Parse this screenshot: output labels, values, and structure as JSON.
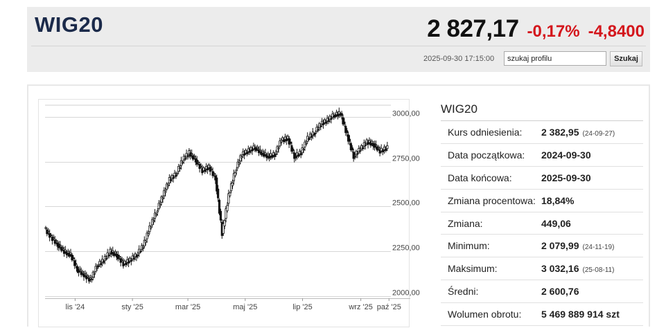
{
  "header": {
    "ticker": "WIG20",
    "price": "2 827,17",
    "change_pct": "-0,17%",
    "change_abs": "-4,8400",
    "timestamp": "2025-09-30 17:15:00",
    "search_value": "szukaj profilu",
    "search_button": "Szukaj",
    "change_color": "#d4161c"
  },
  "stats": {
    "title": "WIG20",
    "rows": [
      {
        "label": "Kurs odniesienia:",
        "value": "2 382,95",
        "date": "(24-09-27)"
      },
      {
        "label": "Data początkowa:",
        "value": "2024-09-30",
        "date": ""
      },
      {
        "label": "Data końcowa:",
        "value": "2025-09-30",
        "date": ""
      },
      {
        "label": "Zmiana procentowa:",
        "value": "18,84%",
        "date": ""
      },
      {
        "label": "Zmiana:",
        "value": "449,06",
        "date": ""
      },
      {
        "label": "Minimum:",
        "value": "2 079,99",
        "date": "(24-11-19)"
      },
      {
        "label": "Maksimum:",
        "value": "3 032,16",
        "date": "(25-08-11)"
      },
      {
        "label": "Średni:",
        "value": "2 600,76",
        "date": ""
      },
      {
        "label": "Wolumen obrotu:",
        "value": "5 469 889 914 szt",
        "date": ""
      }
    ]
  },
  "chart_data": {
    "type": "line",
    "style": "candlestick",
    "x": [
      "2024-09-30",
      "2024-10-07",
      "2024-10-14",
      "2024-10-21",
      "2024-10-28",
      "2024-11-04",
      "2024-11-11",
      "2024-11-18",
      "2024-11-25",
      "2024-12-02",
      "2024-12-09",
      "2024-12-16",
      "2024-12-23",
      "2024-12-30",
      "2025-01-06",
      "2025-01-13",
      "2025-01-20",
      "2025-01-27",
      "2025-02-03",
      "2025-02-10",
      "2025-02-17",
      "2025-02-24",
      "2025-03-03",
      "2025-03-10",
      "2025-03-17",
      "2025-03-24",
      "2025-03-31",
      "2025-04-07",
      "2025-04-14",
      "2025-04-21",
      "2025-04-28",
      "2025-05-05",
      "2025-05-12",
      "2025-05-19",
      "2025-05-26",
      "2025-06-02",
      "2025-06-09",
      "2025-06-16",
      "2025-06-23",
      "2025-06-30",
      "2025-07-07",
      "2025-07-14",
      "2025-07-21",
      "2025-07-28",
      "2025-08-04",
      "2025-08-11",
      "2025-08-18",
      "2025-08-25",
      "2025-09-01",
      "2025-09-08",
      "2025-09-15",
      "2025-09-22",
      "2025-09-30"
    ],
    "values": [
      2380,
      2330,
      2290,
      2250,
      2230,
      2150,
      2120,
      2090,
      2170,
      2200,
      2250,
      2230,
      2180,
      2200,
      2230,
      2280,
      2380,
      2470,
      2560,
      2650,
      2680,
      2760,
      2800,
      2760,
      2700,
      2720,
      2660,
      2350,
      2560,
      2700,
      2790,
      2810,
      2830,
      2800,
      2780,
      2790,
      2870,
      2880,
      2780,
      2800,
      2880,
      2910,
      2960,
      2980,
      3010,
      3020,
      2900,
      2780,
      2820,
      2860,
      2850,
      2810,
      2827
    ],
    "y_ticks": [
      "3000,00",
      "2750,00",
      "2500,00",
      "2250,00",
      "2000,00"
    ],
    "y_tick_values": [
      3000,
      2750,
      2500,
      2250,
      2000
    ],
    "x_ticks": [
      "lis '24",
      "sty '25",
      "mar '25",
      "maj '25",
      "lip '25",
      "wrz '25",
      "paź '25"
    ],
    "x_tick_dates": [
      "2024-11-01",
      "2025-01-01",
      "2025-03-01",
      "2025-05-01",
      "2025-07-01",
      "2025-09-01",
      "2025-10-01"
    ],
    "ylim": [
      2000,
      3050
    ],
    "xlim": [
      "2024-09-30",
      "2025-10-03"
    ],
    "grid": true,
    "color": "#111111"
  }
}
